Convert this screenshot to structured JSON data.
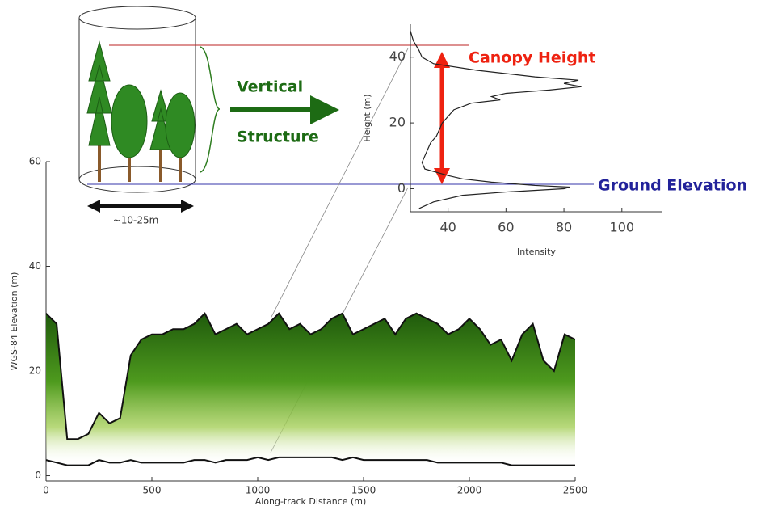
{
  "chart_data": [
    {
      "type": "profile",
      "x_label": "Along-track Distance (m)",
      "y_label": "WGS-84 Elevation (m)",
      "xlim": [
        0,
        2500
      ],
      "xticks": [
        0,
        500,
        1000,
        1500,
        2000,
        2500
      ],
      "ylim": [
        -1,
        60
      ],
      "yticks": [
        0,
        20,
        40,
        60
      ],
      "x": [
        0,
        50,
        100,
        150,
        200,
        250,
        300,
        350,
        400,
        450,
        500,
        550,
        600,
        650,
        700,
        750,
        800,
        850,
        900,
        950,
        1000,
        1050,
        1100,
        1150,
        1200,
        1250,
        1300,
        1350,
        1400,
        1450,
        1500,
        1550,
        1600,
        1650,
        1700,
        1750,
        1800,
        1850,
        1900,
        1950,
        2000,
        2050,
        2100,
        2150,
        2200,
        2250,
        2300,
        2350,
        2400,
        2450,
        2500
      ],
      "top": [
        31,
        29,
        7,
        7,
        8,
        12,
        10,
        11,
        23,
        26,
        27,
        27,
        28,
        28,
        29,
        31,
        27,
        28,
        29,
        27,
        28,
        29,
        31,
        28,
        29,
        27,
        28,
        30,
        31,
        27,
        28,
        29,
        30,
        27,
        30,
        31,
        30,
        29,
        27,
        28,
        30,
        28,
        25,
        26,
        22,
        27,
        29,
        22,
        20,
        27,
        26
      ],
      "ground": [
        3,
        2.5,
        2,
        2,
        2,
        3,
        2.5,
        2.5,
        3,
        2.5,
        2.5,
        2.5,
        2.5,
        2.5,
        3,
        3,
        2.5,
        3,
        3,
        3,
        3.5,
        3,
        3.5,
        3.5,
        3.5,
        3.5,
        3.5,
        3.5,
        3,
        3.5,
        3,
        3,
        3,
        3,
        3,
        3,
        3,
        2.5,
        2.5,
        2.5,
        2.5,
        2.5,
        2.5,
        2.5,
        2,
        2,
        2,
        2,
        2,
        2,
        2
      ],
      "color": "#2e6b12"
    },
    {
      "type": "waveform",
      "x_label": "Intensity",
      "y_label": "Height (m)",
      "xlim": [
        27,
        114
      ],
      "xticks": [
        40,
        60,
        80,
        100
      ],
      "ylim": [
        -7,
        50
      ],
      "yticks": [
        0,
        20,
        40
      ],
      "x": [
        27,
        28,
        30,
        31,
        35,
        50,
        70,
        85,
        80,
        86,
        75,
        60,
        55,
        58,
        48,
        45,
        42,
        40,
        38,
        37,
        36,
        34,
        33,
        32,
        31,
        32,
        40,
        45,
        55,
        70,
        82,
        80,
        60,
        45,
        35,
        30
      ],
      "y": [
        48,
        45,
        42,
        40,
        38,
        36,
        34,
        33,
        32,
        31,
        30,
        29,
        28,
        27,
        26,
        25,
        24,
        22,
        20,
        18,
        16,
        14,
        12,
        10,
        8,
        6,
        4,
        3,
        2,
        1,
        0.5,
        0,
        -1,
        -2,
        -4,
        -6
      ],
      "color": "#222"
    }
  ],
  "annotations": {
    "structure": [
      "Vertical",
      "Structure"
    ],
    "footprint": "~10-25m",
    "canopy": "Canopy Height",
    "ground": "Ground Elevation"
  }
}
